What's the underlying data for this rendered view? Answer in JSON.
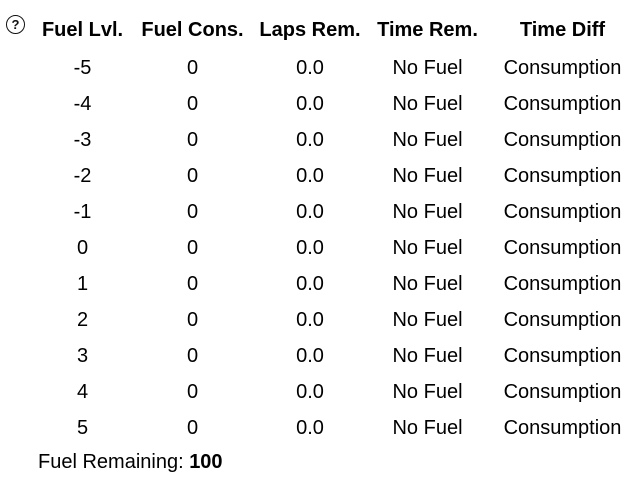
{
  "help": {
    "icon": "?"
  },
  "table": {
    "columns": [
      {
        "key": "fuel_lvl",
        "label": "Fuel Lvl."
      },
      {
        "key": "fuel_cons",
        "label": "Fuel Cons."
      },
      {
        "key": "laps_rem",
        "label": "Laps Rem."
      },
      {
        "key": "time_rem",
        "label": "Time Rem."
      },
      {
        "key": "time_diff",
        "label": "Time Diff"
      }
    ],
    "rows": [
      {
        "fuel_lvl": "-5",
        "fuel_cons": "0",
        "laps_rem": "0.0",
        "time_rem": "No Fuel",
        "time_diff": "Consumption"
      },
      {
        "fuel_lvl": "-4",
        "fuel_cons": "0",
        "laps_rem": "0.0",
        "time_rem": "No Fuel",
        "time_diff": "Consumption"
      },
      {
        "fuel_lvl": "-3",
        "fuel_cons": "0",
        "laps_rem": "0.0",
        "time_rem": "No Fuel",
        "time_diff": "Consumption"
      },
      {
        "fuel_lvl": "-2",
        "fuel_cons": "0",
        "laps_rem": "0.0",
        "time_rem": "No Fuel",
        "time_diff": "Consumption"
      },
      {
        "fuel_lvl": "-1",
        "fuel_cons": "0",
        "laps_rem": "0.0",
        "time_rem": "No Fuel",
        "time_diff": "Consumption"
      },
      {
        "fuel_lvl": "0",
        "fuel_cons": "0",
        "laps_rem": "0.0",
        "time_rem": "No Fuel",
        "time_diff": "Consumption"
      },
      {
        "fuel_lvl": "1",
        "fuel_cons": "0",
        "laps_rem": "0.0",
        "time_rem": "No Fuel",
        "time_diff": "Consumption"
      },
      {
        "fuel_lvl": "2",
        "fuel_cons": "0",
        "laps_rem": "0.0",
        "time_rem": "No Fuel",
        "time_diff": "Consumption"
      },
      {
        "fuel_lvl": "3",
        "fuel_cons": "0",
        "laps_rem": "0.0",
        "time_rem": "No Fuel",
        "time_diff": "Consumption"
      },
      {
        "fuel_lvl": "4",
        "fuel_cons": "0",
        "laps_rem": "0.0",
        "time_rem": "No Fuel",
        "time_diff": "Consumption"
      },
      {
        "fuel_lvl": "5",
        "fuel_cons": "0",
        "laps_rem": "0.0",
        "time_rem": "No Fuel",
        "time_diff": "Consumption"
      }
    ]
  },
  "footer": {
    "fuel_remaining_label": "Fuel Remaining:",
    "fuel_remaining_value": "100"
  },
  "colors": {
    "text": "#000000",
    "background": "#ffffff"
  }
}
